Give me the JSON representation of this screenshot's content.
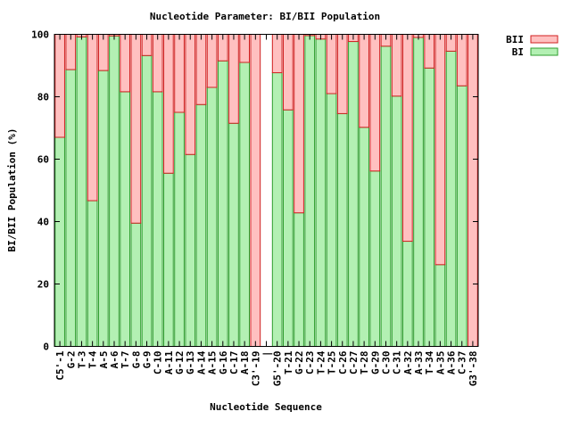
{
  "chart_data": {
    "type": "bar",
    "stacked": true,
    "title": "Nucleotide Parameter: BI/BII Population",
    "xlabel": "Nucleotide Sequence",
    "ylabel": "BI/BII Population (%)",
    "ylim": [
      0,
      100
    ],
    "yticks": [
      0,
      20,
      40,
      60,
      80,
      100
    ],
    "grid": false,
    "legend_position": "top-right, outside plot",
    "categories": [
      "C5'-1",
      "G-2",
      "T-3",
      "T-4",
      "A-5",
      "A-6",
      "T-7",
      "G-8",
      "G-9",
      "C-10",
      "A-11",
      "G-12",
      "G-13",
      "A-14",
      "A-15",
      "G-16",
      "C-17",
      "A-18",
      "C3'-19",
      "|",
      "G5'-20",
      "T-21",
      "G-22",
      "C-23",
      "T-24",
      "T-25",
      "C-26",
      "C-27",
      "T-28",
      "G-29",
      "C-30",
      "C-31",
      "A-32",
      "A-33",
      "T-34",
      "A-35",
      "A-36",
      "C-37",
      "G3'-38"
    ],
    "series": [
      {
        "name": "BI",
        "color": "#b3f0b3",
        "edge": "#2e9e2e",
        "values": [
          67,
          88.7,
          99.2,
          46.7,
          88.4,
          99.5,
          81.6,
          39.5,
          93.2,
          81.6,
          55.5,
          75,
          61.5,
          77.5,
          83,
          91.5,
          71.5,
          91,
          0,
          0,
          87.7,
          75.8,
          42.8,
          99.6,
          98.5,
          81,
          74.6,
          97.7,
          70.2,
          56.2,
          96.2,
          80.2,
          33.7,
          99,
          89.2,
          26.2,
          94.6,
          83.5,
          0
        ]
      },
      {
        "name": "BII",
        "color": "#ffc0c0",
        "edge": "#d02020",
        "values": [
          33,
          11.3,
          0.8,
          53.3,
          11.6,
          0.5,
          18.4,
          60.5,
          6.8,
          18.4,
          44.5,
          25,
          38.5,
          22.5,
          17,
          8.5,
          28.5,
          9,
          100,
          0,
          12.3,
          24.2,
          57.2,
          0.4,
          1.5,
          19,
          25.4,
          2.3,
          29.8,
          43.8,
          3.8,
          19.8,
          66.3,
          1,
          10.8,
          73.8,
          5.4,
          16.5,
          100
        ]
      }
    ],
    "legend": [
      "BII",
      "BI"
    ]
  }
}
